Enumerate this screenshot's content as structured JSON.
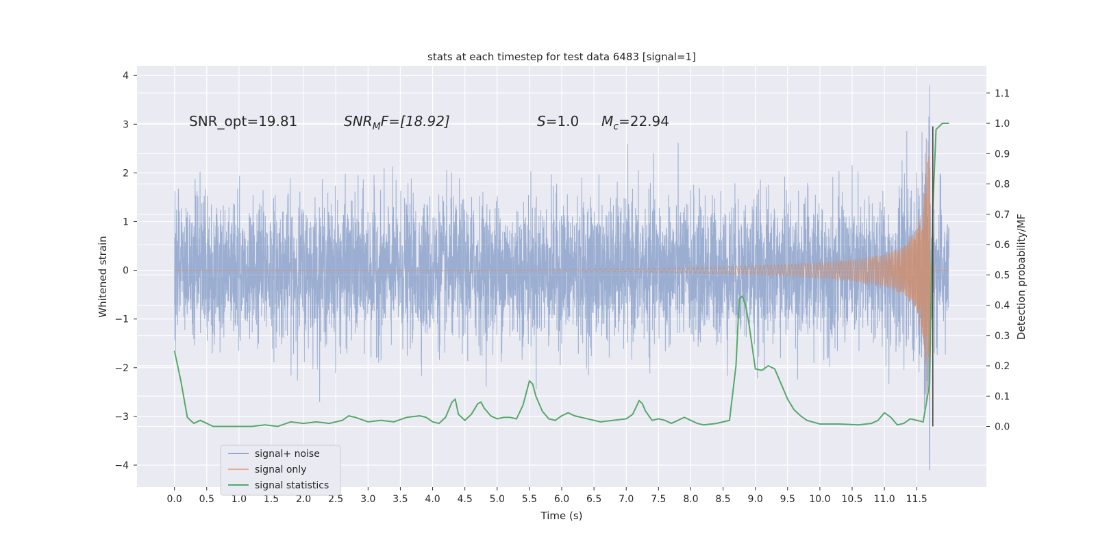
{
  "chart_data": {
    "type": "line",
    "title": "stats at each timestep for test data 6483 [signal=1]",
    "xlabel": "Time (s)",
    "ylabel": "Whitened strain",
    "ylabel_right": "Detection probability/MF",
    "xlim": [
      -0.58,
      12.58
    ],
    "ylim": [
      -4.45,
      4.2
    ],
    "ylim_right": [
      -0.2,
      1.19
    ],
    "x_ticks": [
      0.0,
      0.5,
      1.0,
      1.5,
      2.0,
      2.5,
      3.0,
      3.5,
      4.0,
      4.5,
      5.0,
      5.5,
      6.0,
      6.5,
      7.0,
      7.5,
      8.0,
      8.5,
      9.0,
      9.5,
      10.0,
      10.5,
      11.0,
      11.5
    ],
    "x_tick_labels": [
      "0.0",
      "0.5",
      "1.0",
      "1.5",
      "2.0",
      "2.5",
      "3.0",
      "3.5",
      "4.0",
      "4.5",
      "5.0",
      "5.5",
      "6.0",
      "6.5",
      "7.0",
      "7.5",
      "8.0",
      "8.5",
      "9.0",
      "9.5",
      "10.0",
      "10.5",
      "11.0",
      "11.5"
    ],
    "y_ticks": [
      -4,
      -3,
      -2,
      -1,
      0,
      1,
      2,
      3,
      4
    ],
    "y_tick_labels": [
      "−4",
      "−3",
      "−2",
      "−1",
      "0",
      "1",
      "2",
      "3",
      "4"
    ],
    "y_ticks_right": [
      0.0,
      0.1,
      0.2,
      0.3,
      0.4,
      0.5,
      0.6,
      0.7,
      0.8,
      0.9,
      1.0,
      1.1
    ],
    "y_tick_labels_right": [
      "0.0",
      "0.1",
      "0.2",
      "0.3",
      "0.4",
      "0.5",
      "0.6",
      "0.7",
      "0.8",
      "0.9",
      "1.0",
      "1.1"
    ],
    "grid": true,
    "legend_position": "lower-left",
    "annotations": {
      "snr_opt": "SNR_opt=19.81",
      "snr_mf_main": "SNR",
      "snr_mf_sub": "M",
      "snr_mf_rest": "F=[18.92]",
      "s_main": "S",
      "s_rest": "=1.0",
      "mc_main": "M",
      "mc_sub": "c",
      "mc_rest": "=22.94"
    },
    "series": [
      {
        "name": "signal+ noise",
        "color": "#4c72b0",
        "axis": "left",
        "description_values": {
          "x_range": [
            0.0,
            12.0
          ],
          "typical_amplitude": 1.0,
          "peak_positive": 3.8,
          "peak_negative": -4.1,
          "peak_time": 11.7
        }
      },
      {
        "name": "signal only",
        "color": "#dd8452",
        "axis": "left",
        "x": [
          0.0,
          1.0,
          2.0,
          3.0,
          4.0,
          5.0,
          6.0,
          7.0,
          8.0,
          8.5,
          9.0,
          9.5,
          10.0,
          10.5,
          11.0,
          11.3,
          11.5,
          11.6,
          11.65,
          11.7,
          11.72,
          12.0
        ],
        "amplitude": [
          0.0,
          0.0,
          0.0,
          0.0,
          0.0,
          0.0,
          0.01,
          0.03,
          0.06,
          0.08,
          0.1,
          0.12,
          0.16,
          0.22,
          0.33,
          0.5,
          0.85,
          1.4,
          2.2,
          3.2,
          0.0,
          0.0
        ]
      },
      {
        "name": "signal statistics",
        "color": "#55a868",
        "axis": "right",
        "x": [
          0.0,
          0.1,
          0.2,
          0.3,
          0.4,
          0.6,
          0.8,
          1.0,
          1.2,
          1.4,
          1.6,
          1.8,
          2.0,
          2.2,
          2.4,
          2.6,
          2.7,
          2.8,
          3.0,
          3.2,
          3.4,
          3.6,
          3.8,
          3.9,
          4.0,
          4.1,
          4.2,
          4.3,
          4.35,
          4.4,
          4.5,
          4.6,
          4.7,
          4.75,
          4.8,
          4.9,
          5.0,
          5.1,
          5.2,
          5.3,
          5.4,
          5.5,
          5.55,
          5.6,
          5.7,
          5.8,
          5.9,
          6.0,
          6.1,
          6.2,
          6.4,
          6.6,
          6.8,
          7.0,
          7.1,
          7.2,
          7.25,
          7.3,
          7.4,
          7.5,
          7.6,
          7.7,
          7.8,
          7.9,
          8.0,
          8.1,
          8.2,
          8.4,
          8.6,
          8.7,
          8.75,
          8.8,
          8.85,
          8.9,
          9.0,
          9.1,
          9.2,
          9.3,
          9.4,
          9.5,
          9.6,
          9.7,
          9.8,
          10.0,
          10.3,
          10.6,
          10.8,
          10.9,
          11.0,
          11.1,
          11.2,
          11.3,
          11.4,
          11.5,
          11.6,
          11.7,
          11.75,
          11.8,
          11.85,
          11.9,
          11.95,
          12.0
        ],
        "values": [
          0.25,
          0.15,
          0.03,
          0.01,
          0.02,
          0.0,
          0.0,
          0.0,
          0.0,
          0.005,
          0.0,
          0.015,
          0.01,
          0.015,
          0.01,
          0.02,
          0.035,
          0.03,
          0.015,
          0.02,
          0.015,
          0.03,
          0.035,
          0.03,
          0.015,
          0.01,
          0.03,
          0.08,
          0.09,
          0.04,
          0.02,
          0.04,
          0.075,
          0.08,
          0.06,
          0.035,
          0.025,
          0.03,
          0.03,
          0.025,
          0.07,
          0.15,
          0.14,
          0.1,
          0.05,
          0.025,
          0.02,
          0.035,
          0.045,
          0.035,
          0.025,
          0.015,
          0.02,
          0.025,
          0.04,
          0.085,
          0.075,
          0.05,
          0.02,
          0.025,
          0.02,
          0.01,
          0.02,
          0.03,
          0.02,
          0.01,
          0.005,
          0.01,
          0.02,
          0.2,
          0.42,
          0.43,
          0.4,
          0.34,
          0.19,
          0.185,
          0.2,
          0.19,
          0.14,
          0.09,
          0.055,
          0.035,
          0.02,
          0.008,
          0.008,
          0.005,
          0.01,
          0.02,
          0.045,
          0.03,
          0.005,
          0.01,
          0.025,
          0.02,
          0.015,
          0.14,
          0.72,
          0.98,
          0.99,
          1.0,
          1.0,
          1.0
        ]
      }
    ]
  }
}
